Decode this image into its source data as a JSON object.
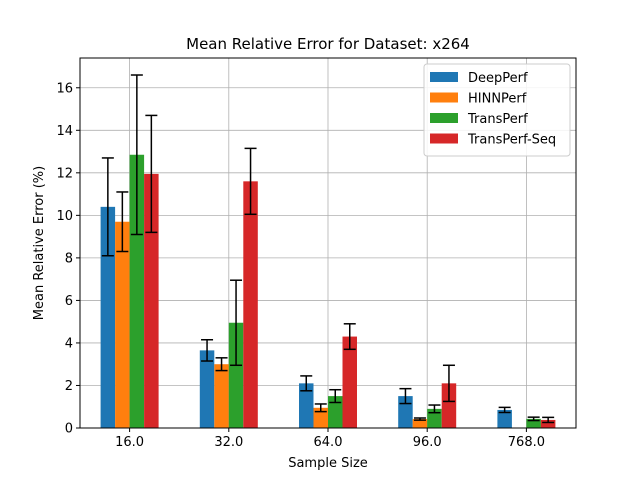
{
  "chart_data": {
    "type": "bar",
    "title": "Mean Relative Error for Dataset: x264",
    "xlabel": "Sample Size",
    "ylabel": "Mean Relative Error (%)",
    "categories": [
      "16.0",
      "32.0",
      "64.0",
      "96.0",
      "768.0"
    ],
    "ylim": [
      0,
      17.4
    ],
    "yticks": [
      0,
      2,
      4,
      6,
      8,
      10,
      12,
      14,
      16
    ],
    "grid": true,
    "legend_position": "top-right",
    "series": [
      {
        "name": "DeepPerf",
        "color": "#1f77b4",
        "values": [
          10.4,
          3.65,
          2.1,
          1.5,
          0.85
        ],
        "errors": [
          2.3,
          0.5,
          0.35,
          0.35,
          0.12
        ]
      },
      {
        "name": "HINNPerf",
        "color": "#ff7f0e",
        "values": [
          9.7,
          3.0,
          0.95,
          0.42,
          null
        ],
        "errors": [
          1.4,
          0.3,
          0.18,
          0.05,
          null
        ]
      },
      {
        "name": "TransPerf",
        "color": "#2ca02c",
        "values": [
          12.85,
          4.95,
          1.5,
          0.9,
          0.43
        ],
        "errors": [
          3.75,
          2.0,
          0.3,
          0.18,
          0.08
        ]
      },
      {
        "name": "TransPerf-Seq",
        "color": "#d62728",
        "values": [
          11.95,
          11.6,
          4.3,
          2.1,
          0.38
        ],
        "errors": [
          2.75,
          1.55,
          0.6,
          0.85,
          0.12
        ]
      }
    ]
  }
}
